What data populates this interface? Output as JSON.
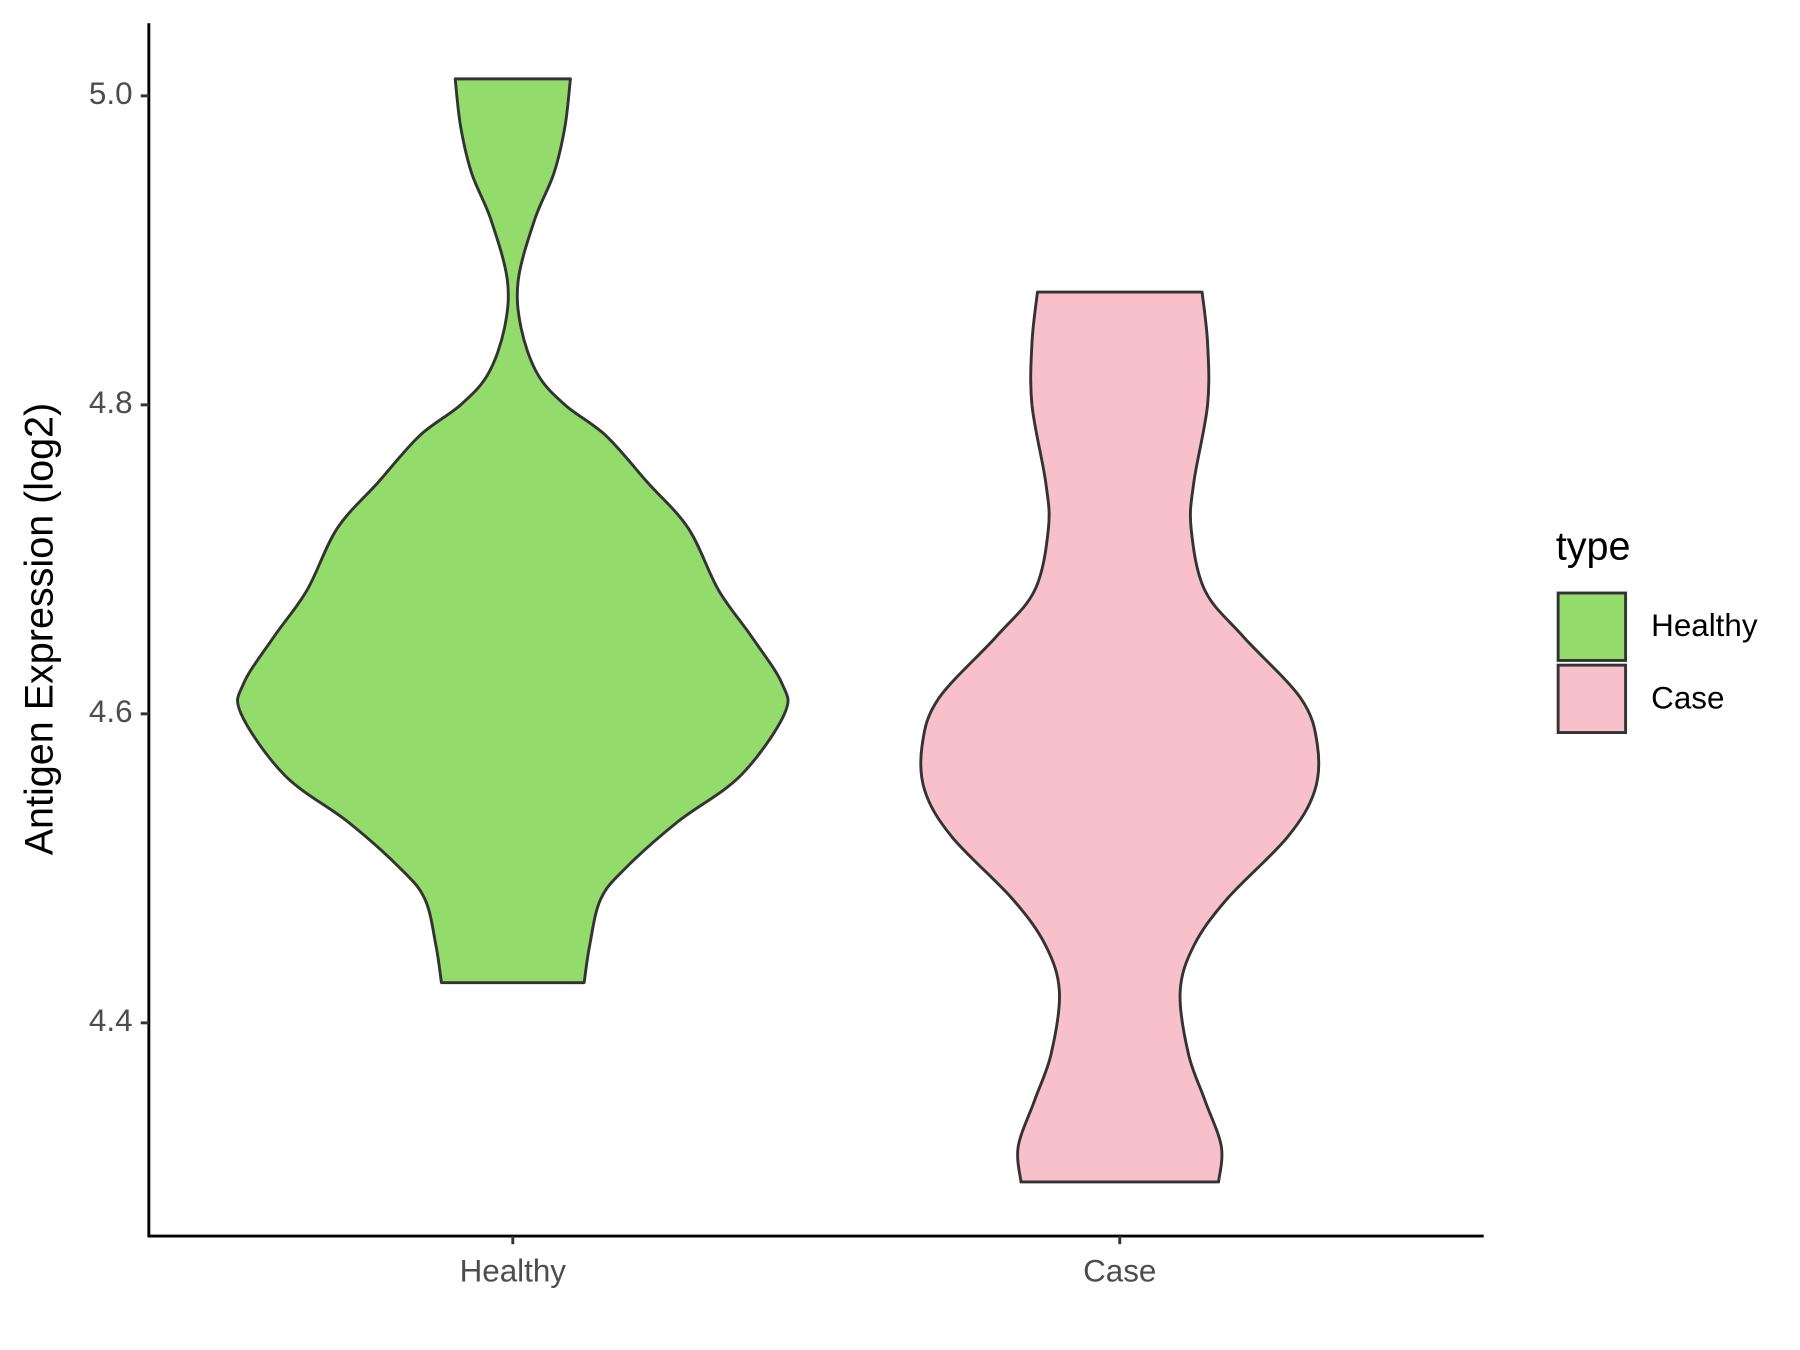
{
  "chart_data": {
    "type": "violin",
    "y_label": "Antigen Expression (log2)",
    "legend_title": "type",
    "categories": [
      "Healthy",
      "Case"
    ],
    "ylim": [
      4.262,
      5.047
    ],
    "yticks": [
      {
        "value": 4.4,
        "label": "4.4"
      },
      {
        "value": 4.6,
        "label": "4.6"
      },
      {
        "value": 4.8,
        "label": "4.8"
      },
      {
        "value": 5.0,
        "label": "5.0"
      }
    ],
    "series": [
      {
        "name": "Healthy",
        "color": "#93DB6B",
        "y": [
          4.426,
          4.45,
          4.48,
          4.5,
          4.53,
          4.56,
          4.6,
          4.62,
          4.65,
          4.68,
          4.72,
          4.75,
          4.78,
          4.8,
          4.82,
          4.85,
          4.881,
          4.92,
          4.95,
          4.98,
          5.011
        ],
        "density": [
          0.26,
          0.28,
          0.32,
          0.41,
          0.6,
          0.83,
          0.99,
          0.98,
          0.87,
          0.75,
          0.64,
          0.49,
          0.34,
          0.19,
          0.09,
          0.03,
          0.02,
          0.08,
          0.15,
          0.19,
          0.21
        ]
      },
      {
        "name": "Case",
        "color": "#F7C0CB",
        "y": [
          4.297,
          4.32,
          4.35,
          4.38,
          4.42,
          4.45,
          4.48,
          4.52,
          4.55,
          4.58,
          4.61,
          4.65,
          4.68,
          4.72,
          4.75,
          4.8,
          4.84,
          4.873
        ],
        "density": [
          0.36,
          0.37,
          0.31,
          0.25,
          0.22,
          0.27,
          0.39,
          0.61,
          0.71,
          0.72,
          0.66,
          0.45,
          0.31,
          0.26,
          0.27,
          0.32,
          0.32,
          0.3
        ]
      }
    ]
  }
}
